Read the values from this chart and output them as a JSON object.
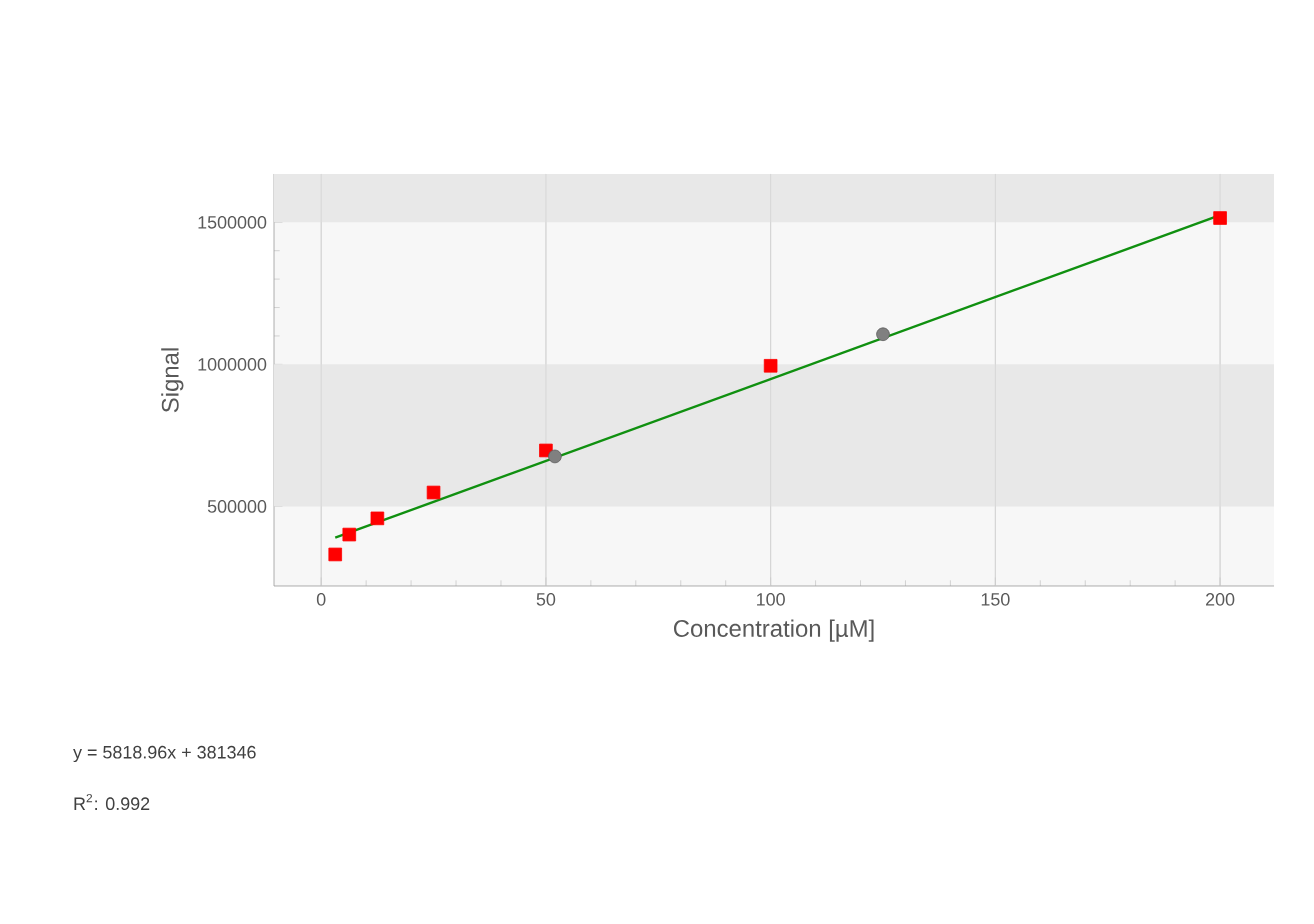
{
  "chart_data": {
    "type": "scatter",
    "xlabel": "Concentration [µM]",
    "ylabel": "Signal",
    "xlim": [
      -10.5,
      212
    ],
    "ylim": [
      220000,
      1670000
    ],
    "xticks": [
      0,
      50,
      100,
      150,
      200
    ],
    "yticks": [
      500000,
      1000000,
      1500000
    ],
    "grid": "x",
    "bands": [
      {
        "axis": "y",
        "from": 500000,
        "to": 1000000,
        "color": "#e8e8e8"
      },
      {
        "axis": "y",
        "from": 1500000,
        "to": 1670000,
        "color": "#e8e8e8"
      }
    ],
    "series": [
      {
        "type": "line",
        "color": "#109010",
        "marker": "none",
        "line_style": "solid",
        "x": [
          3.125,
          200
        ],
        "values": [
          390000,
          1525000
        ]
      },
      {
        "color": "#ff0000",
        "marker": "square",
        "x": [
          3.125,
          6.25,
          12.5,
          25,
          50,
          100,
          200
        ],
        "values": [
          331000,
          401000,
          458000,
          549000,
          697000,
          995000,
          1515000
        ]
      },
      {
        "color": "#808080",
        "marker": "circle",
        "x": [
          52,
          125
        ],
        "values": [
          676000,
          1106000
        ]
      }
    ],
    "annotations": [
      "y = 5818.96x + 381346",
      "R$^{2}$: 0.992"
    ]
  }
}
